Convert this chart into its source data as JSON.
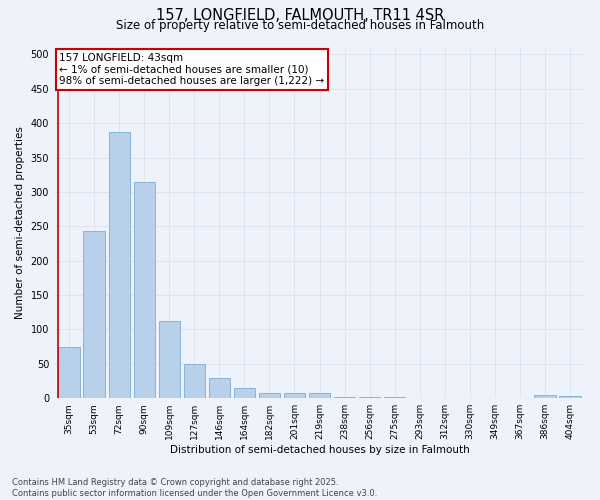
{
  "title1": "157, LONGFIELD, FALMOUTH, TR11 4SR",
  "title2": "Size of property relative to semi-detached houses in Falmouth",
  "xlabel": "Distribution of semi-detached houses by size in Falmouth",
  "ylabel": "Number of semi-detached properties",
  "categories": [
    "35sqm",
    "53sqm",
    "72sqm",
    "90sqm",
    "109sqm",
    "127sqm",
    "146sqm",
    "164sqm",
    "182sqm",
    "201sqm",
    "219sqm",
    "238sqm",
    "256sqm",
    "275sqm",
    "293sqm",
    "312sqm",
    "330sqm",
    "349sqm",
    "367sqm",
    "386sqm",
    "404sqm"
  ],
  "values": [
    74,
    243,
    387,
    315,
    113,
    50,
    30,
    15,
    8,
    8,
    8,
    2,
    2,
    2,
    1,
    1,
    0,
    0,
    0,
    5,
    3
  ],
  "bar_color": "#b8d0ea",
  "bar_edge_color": "#7aadd4",
  "annotation_text": "157 LONGFIELD: 43sqm\n← 1% of semi-detached houses are smaller (10)\n98% of semi-detached houses are larger (1,222) →",
  "annotation_box_color": "#ffffff",
  "annotation_box_edge_color": "#cc0000",
  "vline_color": "#cc0000",
  "grid_color": "#dde4ef",
  "background_color": "#eef2fa",
  "ylim": [
    0,
    510
  ],
  "yticks": [
    0,
    50,
    100,
    150,
    200,
    250,
    300,
    350,
    400,
    450,
    500
  ],
  "footer_text": "Contains HM Land Registry data © Crown copyright and database right 2025.\nContains public sector information licensed under the Open Government Licence v3.0."
}
